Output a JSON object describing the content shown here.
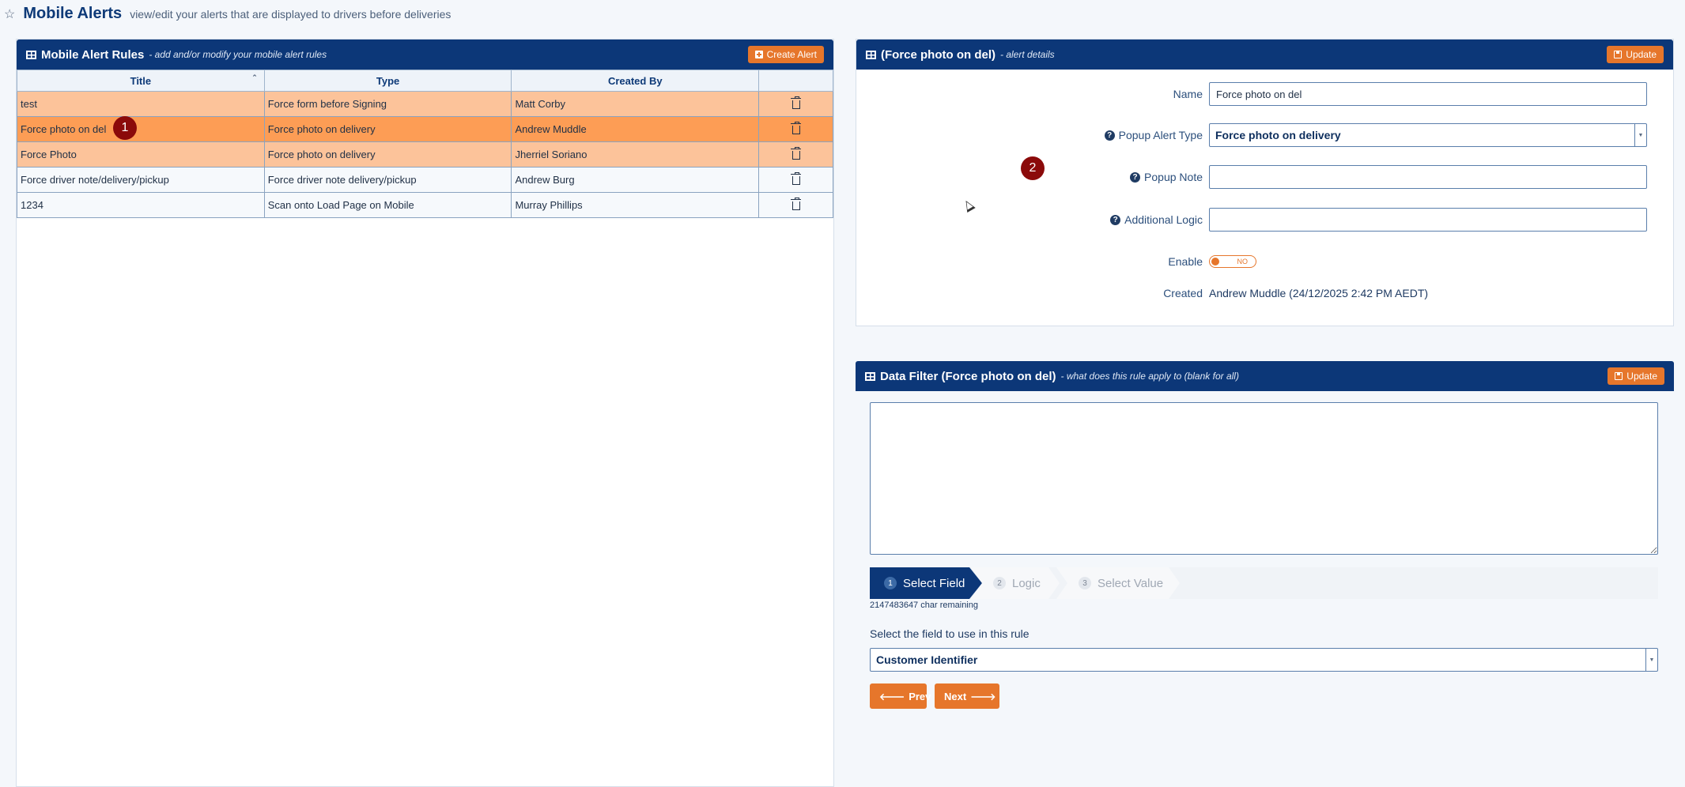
{
  "page": {
    "title": "Mobile Alerts",
    "subtitle": "view/edit your alerts that are displayed to drivers before deliveries"
  },
  "rules_panel": {
    "title": "Mobile Alert Rules",
    "subtitle": "- add and/or modify your mobile alert rules",
    "create_button": "Create Alert",
    "columns": [
      "Title",
      "Type",
      "Created By",
      ""
    ],
    "rows": [
      {
        "title": "test",
        "type": "Force form before Signing",
        "created_by": "Matt Corby"
      },
      {
        "title": "Force photo on del",
        "type": "Force photo on delivery",
        "created_by": "Andrew Muddle"
      },
      {
        "title": "Force Photo",
        "type": "Force photo on delivery",
        "created_by": "Jherriel Soriano"
      },
      {
        "title": "Force driver note/delivery/pickup",
        "type": "Force driver note delivery/pickup",
        "created_by": "Andrew Burg"
      },
      {
        "title": "1234",
        "type": "Scan onto Load Page on Mobile",
        "created_by": "Murray Phillips"
      }
    ]
  },
  "markers": {
    "one": "1",
    "two": "2"
  },
  "details_panel": {
    "title": "(Force photo on del)",
    "subtitle": "- alert details",
    "update_button": "Update",
    "name_label": "Name",
    "name_value": "Force photo on del",
    "popup_type_label": "Popup Alert Type",
    "popup_type_value": "Force photo on delivery",
    "popup_note_label": "Popup Note",
    "popup_note_value": "",
    "additional_logic_label": "Additional Logic",
    "additional_logic_value": "",
    "enable_label": "Enable",
    "enable_value": "NO",
    "created_label": "Created",
    "created_value": "Andrew Muddle (24/12/2025 2:42 PM AEDT)"
  },
  "filter_panel": {
    "title": "Data Filter (Force photo on del)",
    "subtitle": "- what does this rule apply to (blank for all)",
    "update_button": "Update",
    "filter_value": "",
    "steps": [
      {
        "num": "1",
        "label": "Select Field"
      },
      {
        "num": "2",
        "label": "Logic"
      },
      {
        "num": "3",
        "label": "Select Value"
      }
    ],
    "char_remaining": "2147483647 char remaining",
    "field_prompt": "Select the field to use in this rule",
    "field_value": "Customer Identifier",
    "prev_button": "Prev",
    "next_button": "Next"
  },
  "colors": {
    "header_navy": "#0c3778",
    "accent_orange": "#e6762b",
    "row_selected": "#fd9d55",
    "row_highlight": "#fcc39a",
    "marker_red": "#8b0a0a"
  }
}
